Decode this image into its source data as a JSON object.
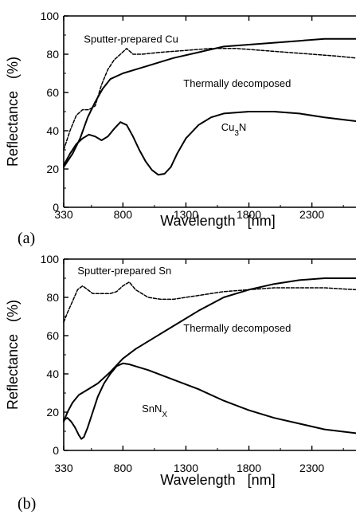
{
  "chart_data": [
    {
      "type": "line",
      "panel_label": "(a)",
      "xlabel": "Wavelength   [nm]",
      "ylabel": "Reflectance   (%)",
      "xlim": [
        330,
        2650
      ],
      "ylim": [
        0,
        100
      ],
      "xticks": [
        330,
        800,
        1300,
        1800,
        2300
      ],
      "yticks": [
        0,
        20,
        40,
        60,
        80,
        100
      ],
      "grid": false,
      "annotations": [
        {
          "text": "Sputter-prepared Cu",
          "x": 490,
          "y": 86
        },
        {
          "text": "Thermally decomposed",
          "x": 1280,
          "y": 63
        },
        {
          "text": "Cu",
          "sub": "3",
          "after": "N",
          "x": 1580,
          "y": 40
        }
      ],
      "series": [
        {
          "style": "dashed-dotted",
          "x": [
            330,
            380,
            430,
            480,
            530,
            580,
            630,
            680,
            730,
            780,
            830,
            880,
            950,
            1100,
            1300,
            1500,
            1700,
            1900,
            2100,
            2300,
            2500,
            2650
          ],
          "y": [
            30,
            40,
            48,
            51,
            51,
            53,
            64,
            72,
            77,
            80,
            83,
            80,
            80,
            81,
            82,
            83,
            83,
            82,
            81,
            80,
            79,
            78
          ]
        },
        {
          "style": "solid",
          "x": [
            330,
            400,
            460,
            520,
            580,
            640,
            700,
            800,
            900,
            1000,
            1200,
            1400,
            1600,
            1800,
            2000,
            2200,
            2400,
            2600,
            2650
          ],
          "y": [
            21,
            28,
            36,
            47,
            55,
            62,
            67,
            70,
            72,
            74,
            78,
            81,
            84,
            85,
            86,
            87,
            88,
            88,
            88
          ]
        },
        {
          "style": "solid",
          "x": [
            330,
            380,
            430,
            480,
            530,
            580,
            630,
            680,
            730,
            780,
            830,
            880,
            930,
            980,
            1030,
            1080,
            1130,
            1180,
            1230,
            1300,
            1400,
            1500,
            1600,
            1800,
            2000,
            2200,
            2400,
            2650
          ],
          "y": [
            22,
            28,
            33,
            36,
            38,
            37,
            35,
            37,
            41,
            44.5,
            43,
            37,
            30,
            24,
            19.5,
            17,
            17.5,
            21,
            28,
            36,
            43,
            47,
            49,
            50,
            50,
            49,
            47,
            45
          ]
        }
      ]
    },
    {
      "type": "line",
      "panel_label": "(b)",
      "xlabel": "Wavelength   [nm]",
      "ylabel": "Reflectance   (%)",
      "xlim": [
        330,
        2650
      ],
      "ylim": [
        0,
        100
      ],
      "xticks": [
        330,
        800,
        1300,
        1800,
        2300
      ],
      "yticks": [
        0,
        20,
        40,
        60,
        80,
        100
      ],
      "grid": false,
      "annotations": [
        {
          "text": "Sputter-prepared Sn",
          "x": 440,
          "y": 92
        },
        {
          "text": "Thermally decomposed",
          "x": 1280,
          "y": 62
        },
        {
          "text": "SnN",
          "sub": "X",
          "after": "",
          "x": 950,
          "y": 20
        }
      ],
      "series": [
        {
          "style": "dashed-dotted",
          "x": [
            330,
            360,
            400,
            440,
            480,
            520,
            560,
            600,
            650,
            700,
            750,
            800,
            850,
            900,
            950,
            1000,
            1100,
            1200,
            1300,
            1400,
            1600,
            1800,
            2000,
            2200,
            2400,
            2650
          ],
          "y": [
            67,
            72,
            78,
            84,
            86,
            84,
            82,
            82,
            82,
            82,
            83,
            86,
            88,
            84,
            82,
            80,
            79,
            79,
            80,
            81,
            83,
            84,
            85,
            85,
            85,
            84
          ]
        },
        {
          "style": "solid",
          "x": [
            330,
            360,
            400,
            450,
            500,
            600,
            700,
            800,
            900,
            1000,
            1200,
            1400,
            1600,
            1800,
            2000,
            2200,
            2400,
            2650
          ],
          "y": [
            15,
            20,
            25,
            29,
            31,
            35,
            41,
            48,
            53,
            57,
            65,
            73,
            80,
            84,
            87,
            89,
            90,
            90
          ]
        },
        {
          "style": "solid",
          "x": [
            330,
            360,
            390,
            420,
            450,
            470,
            490,
            520,
            560,
            600,
            650,
            700,
            750,
            800,
            850,
            900,
            1000,
            1200,
            1400,
            1600,
            1800,
            2000,
            2200,
            2400,
            2650
          ],
          "y": [
            16,
            17,
            15,
            12,
            8,
            6,
            7,
            12,
            20,
            28,
            35,
            40,
            44,
            45.5,
            45,
            44,
            42,
            37,
            32,
            26,
            21,
            17,
            14,
            11,
            9
          ]
        }
      ]
    }
  ]
}
